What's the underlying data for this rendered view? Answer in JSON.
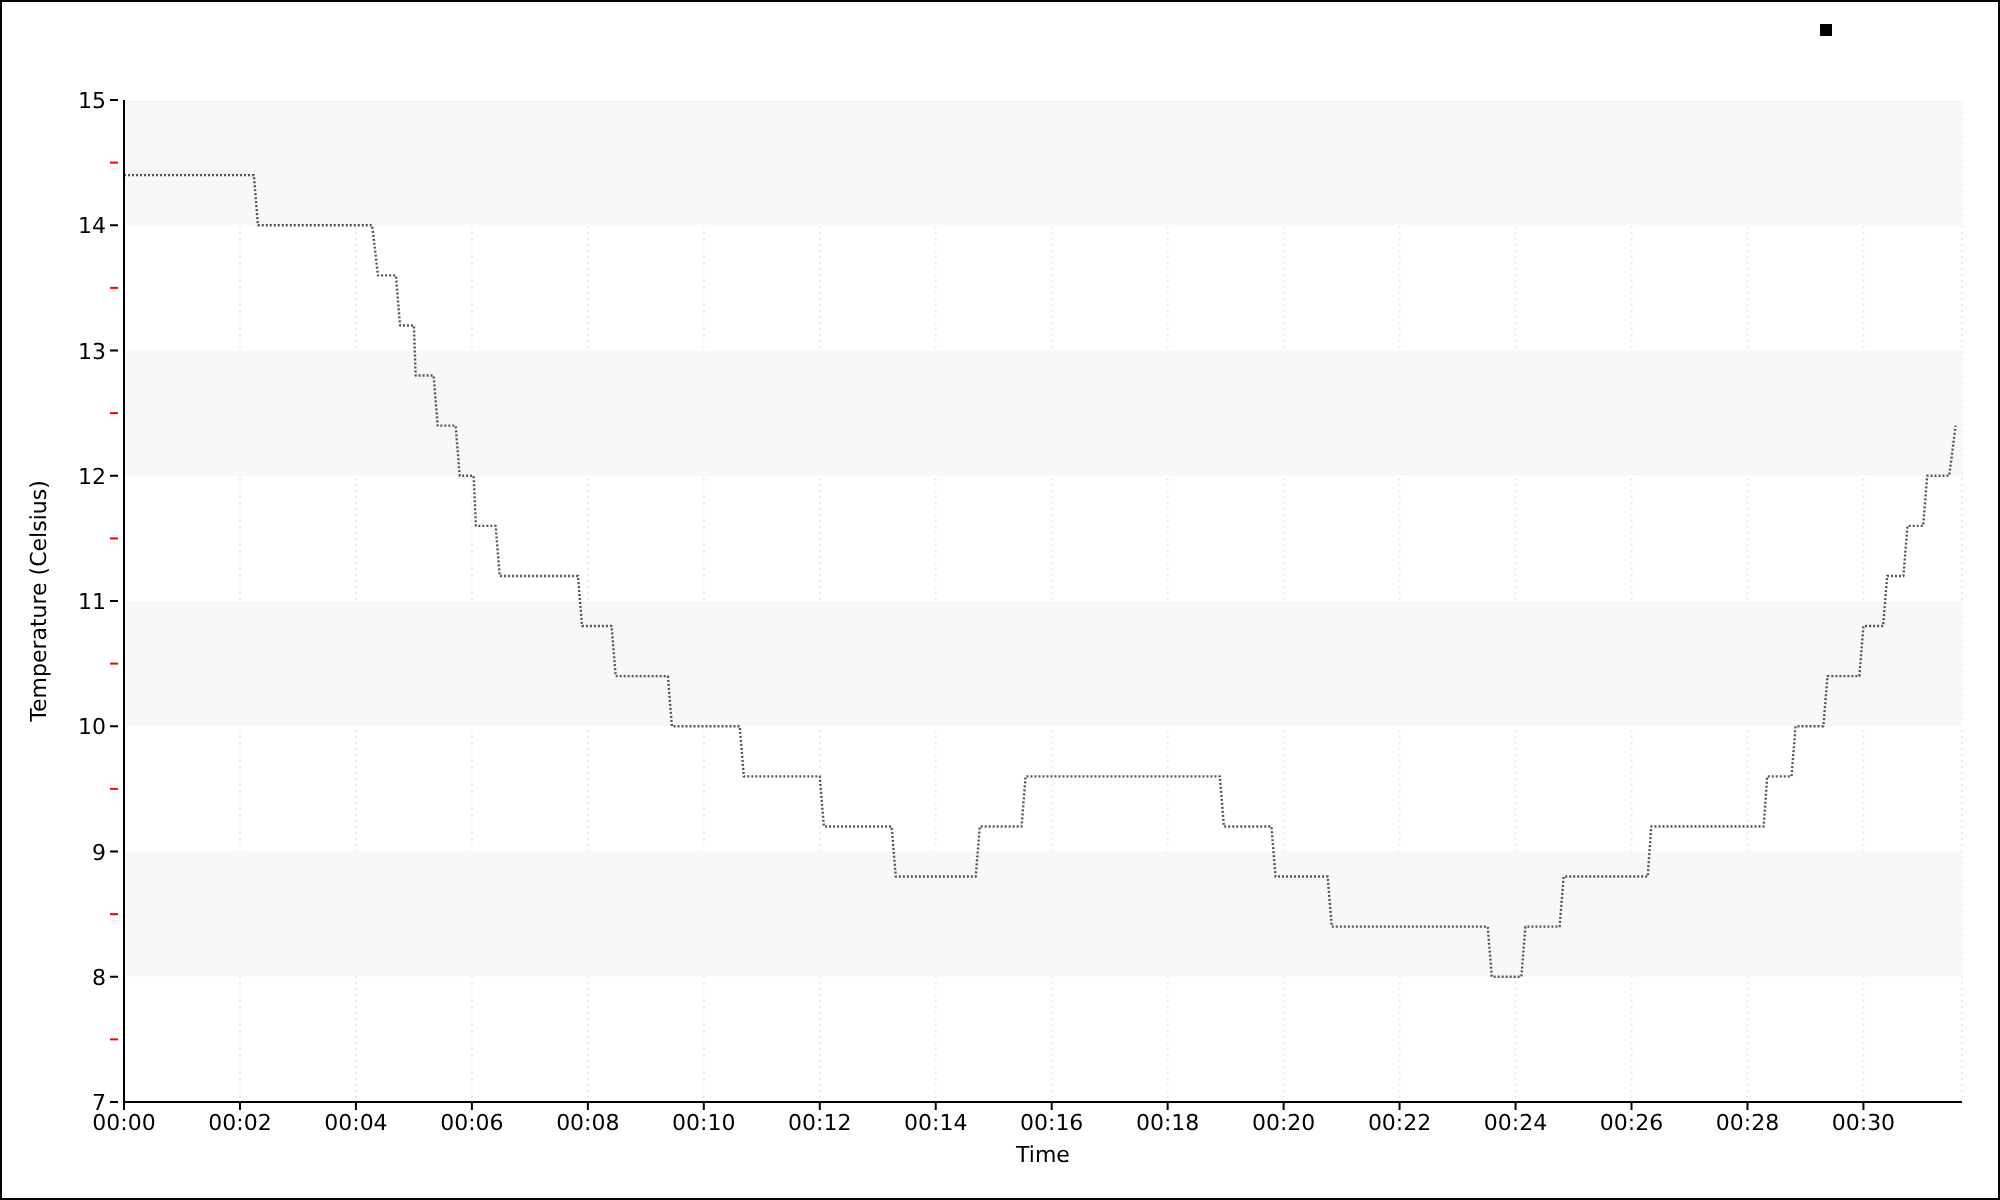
{
  "chart_data": {
    "type": "line",
    "xlabel": "Time",
    "ylabel": "Temperature (Celsius)",
    "x": [
      0,
      2.24,
      2.31,
      4.28,
      4.38,
      4.69,
      4.76,
      5.0,
      5.03,
      5.34,
      5.41,
      5.72,
      5.79,
      6.03,
      6.07,
      6.41,
      6.48,
      7.83,
      7.9,
      8.41,
      8.48,
      9.38,
      9.45,
      10.62,
      10.69,
      12.0,
      12.07,
      13.24,
      13.31,
      14.69,
      14.76,
      15.48,
      15.55,
      18.9,
      18.97,
      19.79,
      19.86,
      20.76,
      20.83,
      23.52,
      23.59,
      24.1,
      24.17,
      24.76,
      24.83,
      26.28,
      26.34,
      28.28,
      28.34,
      28.76,
      28.83,
      29.31,
      29.38,
      29.93,
      30.0,
      30.34,
      30.41,
      30.69,
      30.76,
      31.03,
      31.1,
      31.48,
      31.59
    ],
    "series": [
      {
        "color": "#555555",
        "values": [
          14.4,
          14.4,
          14.0,
          14.0,
          13.6,
          13.6,
          13.2,
          13.2,
          12.8,
          12.8,
          12.4,
          12.4,
          12.0,
          12.0,
          11.6,
          11.6,
          11.2,
          11.2,
          10.8,
          10.8,
          10.4,
          10.4,
          10.0,
          10.0,
          9.6,
          9.6,
          9.2,
          9.2,
          8.8,
          8.8,
          9.2,
          9.2,
          9.6,
          9.6,
          9.2,
          9.2,
          8.8,
          8.8,
          8.4,
          8.4,
          8.0,
          8.0,
          8.4,
          8.4,
          8.8,
          8.8,
          9.2,
          9.2,
          9.6,
          9.6,
          10.0,
          10.0,
          10.4,
          10.4,
          10.8,
          10.8,
          11.2,
          11.2,
          11.6,
          11.6,
          12.0,
          12.0,
          12.4
        ]
      }
    ],
    "xlim": [
      0,
      31.7
    ],
    "xticks": [
      {
        "value": 0,
        "label": "00:00"
      },
      {
        "value": 2,
        "label": "00:02"
      },
      {
        "value": 4,
        "label": "00:04"
      },
      {
        "value": 6,
        "label": "00:06"
      },
      {
        "value": 8,
        "label": "00:08"
      },
      {
        "value": 10,
        "label": "00:10"
      },
      {
        "value": 12,
        "label": "00:12"
      },
      {
        "value": 14,
        "label": "00:14"
      },
      {
        "value": 16,
        "label": "00:16"
      },
      {
        "value": 18,
        "label": "00:18"
      },
      {
        "value": 20,
        "label": "00:20"
      },
      {
        "value": 22,
        "label": "00:22"
      },
      {
        "value": 24,
        "label": "00:24"
      },
      {
        "value": 26,
        "label": "00:26"
      },
      {
        "value": 28,
        "label": "00:28"
      },
      {
        "value": 30,
        "label": "00:30"
      }
    ],
    "ylim": [
      7,
      15
    ],
    "yticks": [
      7,
      {
        "value": 7.5,
        "label": null
      },
      8,
      {
        "value": 8.5,
        "label": null
      },
      9,
      {
        "value": 9.5,
        "label": null
      },
      10,
      {
        "value": 10.5,
        "label": null
      },
      11,
      {
        "value": 11.5,
        "label": null
      },
      12,
      {
        "value": 12.5,
        "label": null
      },
      13,
      {
        "value": 13.5,
        "label": null
      },
      14,
      {
        "value": 14.5,
        "label": null
      },
      15
    ],
    "bands": [
      {
        "axis": "y",
        "from": 8,
        "to": 9,
        "color": "#f8f8f8"
      },
      {
        "axis": "y",
        "from": 10,
        "to": 11,
        "color": "#f8f8f8"
      },
      {
        "axis": "y",
        "from": 12,
        "to": 13,
        "color": "#f8f8f8"
      },
      {
        "axis": "y",
        "from": 14,
        "to": 15,
        "color": "#f8f8f8"
      }
    ],
    "grid": "x",
    "marker": "none",
    "line_style": "dotted"
  }
}
